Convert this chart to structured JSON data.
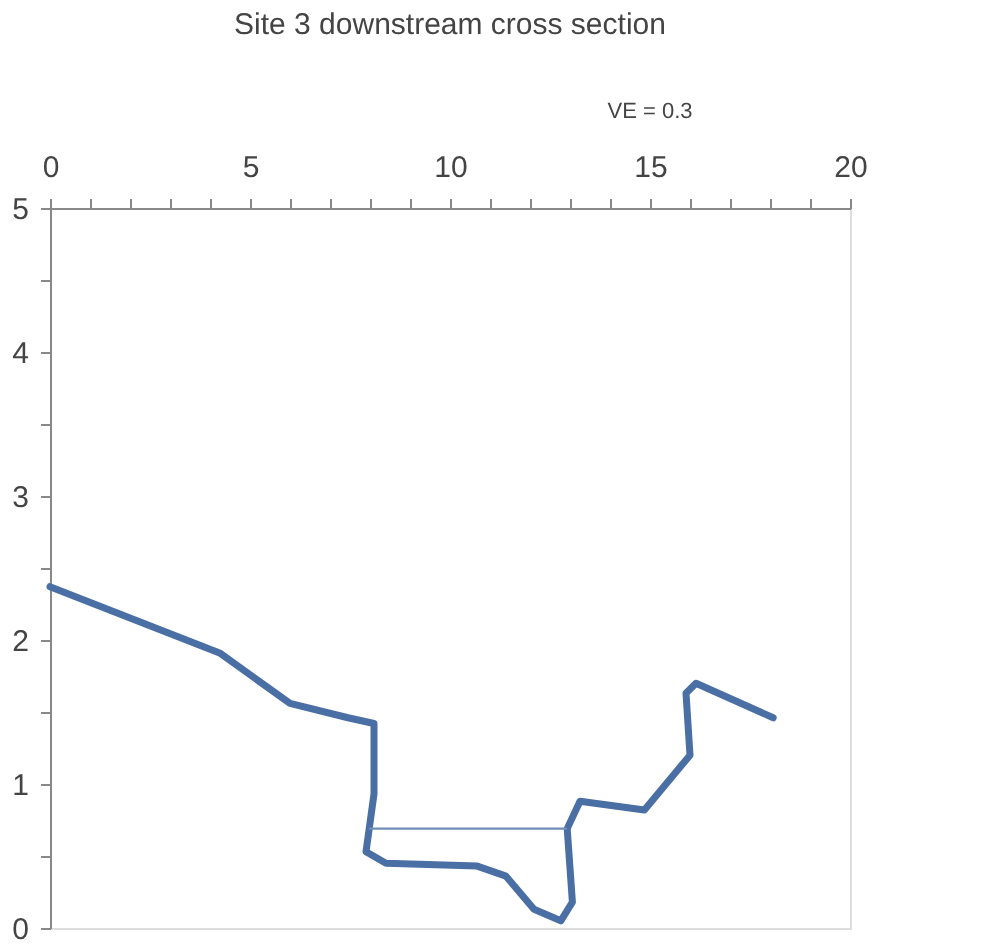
{
  "chart_data": {
    "type": "line",
    "title": "Site 3 downstream cross section",
    "annotations": [
      "VE = 0.3"
    ],
    "xlim": [
      0,
      20
    ],
    "ylim": [
      0,
      5
    ],
    "xticks": [
      0,
      {
        "value": 1,
        "label": null
      },
      {
        "value": 2,
        "label": null
      },
      {
        "value": 3,
        "label": null
      },
      {
        "value": 4,
        "label": null
      },
      5,
      {
        "value": 6,
        "label": null
      },
      {
        "value": 7,
        "label": null
      },
      {
        "value": 8,
        "label": null
      },
      {
        "value": 9,
        "label": null
      },
      10,
      {
        "value": 11,
        "label": null
      },
      {
        "value": 12,
        "label": null
      },
      {
        "value": 13,
        "label": null
      },
      {
        "value": 14,
        "label": null
      },
      15,
      {
        "value": 16,
        "label": null
      },
      {
        "value": 17,
        "label": null
      },
      {
        "value": 18,
        "label": null
      },
      {
        "value": 19,
        "label": null
      },
      20
    ],
    "yticks": [
      0,
      {
        "value": 0.5,
        "label": null
      },
      1,
      {
        "value": 1.5,
        "label": null
      },
      2,
      {
        "value": 2.5,
        "label": null
      },
      3,
      {
        "value": 3.5,
        "label": null
      },
      4,
      {
        "value": 4.5,
        "label": null
      },
      5
    ],
    "grid": false,
    "marker": "none",
    "line_style": "solid",
    "series": [
      {
        "color": "#4a6fa5",
        "x": [
          0,
          4.24,
          6.0,
          7.45,
          8.1,
          8.1,
          7.9,
          8.4,
          10.68,
          11.4,
          12.1,
          12.77,
          13.06,
          12.93,
          13.25,
          14.86,
          16.0,
          15.9,
          16.15,
          18.08
        ],
        "values": [
          2.37,
          1.91,
          1.56,
          1.46,
          1.42,
          0.93,
          0.53,
          0.45,
          0.43,
          0.36,
          0.13,
          0.05,
          0.18,
          0.69,
          0.88,
          0.82,
          1.2,
          1.63,
          1.7,
          1.46
        ]
      },
      {
        "color": "#6f8fb8",
        "x": [
          8.0,
          12.9
        ],
        "values": [
          0.69,
          0.69
        ]
      }
    ]
  }
}
